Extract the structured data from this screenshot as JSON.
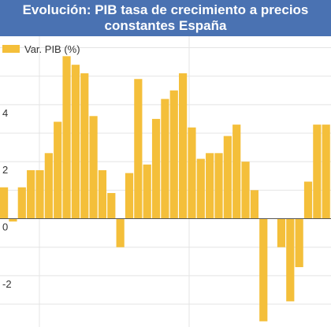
{
  "chart_data": {
    "type": "bar",
    "title": "Evolución: PIB tasa de crecimiento a precios constantes España",
    "series": [
      {
        "name": "Var. PIB (%)",
        "values": [
          1.1,
          -0.1,
          1.1,
          1.7,
          1.7,
          2.3,
          3.4,
          5.7,
          5.4,
          5.1,
          3.6,
          1.7,
          0.9,
          -1.0,
          1.6,
          4.9,
          1.9,
          3.5,
          4.2,
          4.5,
          5.1,
          3.2,
          2.1,
          2.3,
          2.3,
          2.9,
          3.3,
          2.0,
          1.0,
          -3.6,
          0.0,
          -1.0,
          -2.9,
          -1.7,
          1.3,
          3.3,
          3.3,
          2.9
        ]
      }
    ],
    "yticks": [
      -2,
      0,
      2,
      4
    ],
    "ylim": [
      -3.8,
      6.4
    ],
    "grid": true,
    "legend": "top-left",
    "colors": {
      "header_bg": "#4a72b2",
      "bar": "#f4bf3a",
      "grid": "#e4e4e4",
      "zero_line": "#555555"
    }
  }
}
